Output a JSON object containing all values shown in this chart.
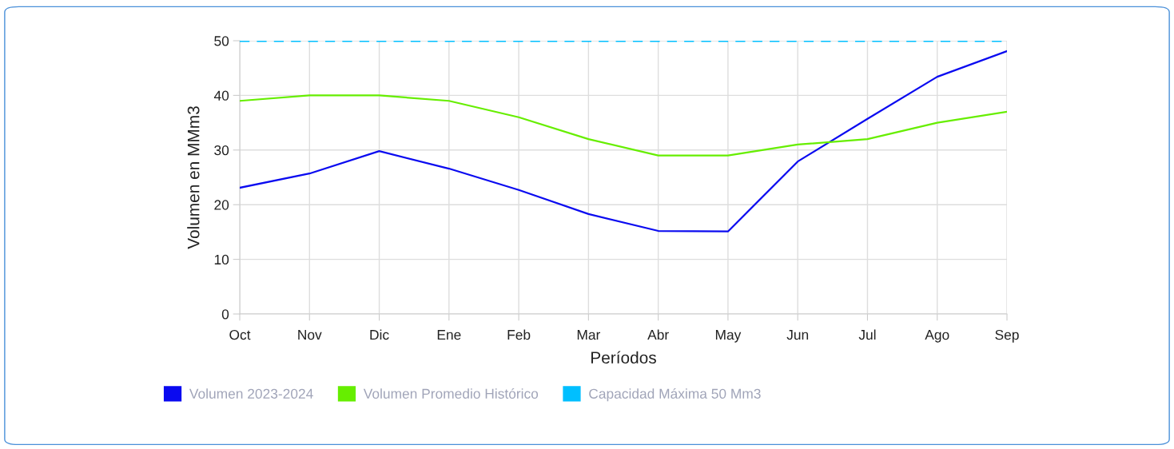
{
  "chart_data": {
    "type": "line",
    "xlabel": "Períodos",
    "ylabel": "Volumen en MMm3",
    "categories": [
      "Oct",
      "Nov",
      "Dic",
      "Ene",
      "Feb",
      "Mar",
      "Abr",
      "May",
      "Jun",
      "Jul",
      "Ago",
      "Sep"
    ],
    "series": [
      {
        "name": "Volumen 2023-2024",
        "color": "#0a0af0",
        "values": [
          23.1,
          25.7,
          29.8,
          26.6,
          22.7,
          18.3,
          15.2,
          15.1,
          27.9,
          35.7,
          43.4,
          48.1
        ]
      },
      {
        "name": "Volumen Promedio Histórico",
        "color": "#66ee00",
        "values": [
          39,
          40,
          40,
          39,
          36,
          32,
          29,
          29,
          31,
          32,
          35,
          37
        ]
      },
      {
        "name": "Capacidad Máxima 50 Mm3",
        "color": "#00bfff",
        "line_style": "dashed",
        "values": [
          50,
          50,
          50,
          50,
          50,
          50,
          50,
          50,
          50,
          50,
          50,
          50
        ]
      }
    ],
    "ylim": [
      0,
      50
    ],
    "yticks": [
      0,
      10,
      20,
      30,
      40,
      50
    ],
    "grid": true,
    "legend": "bottom",
    "marker": "none",
    "line_style": "solid"
  }
}
